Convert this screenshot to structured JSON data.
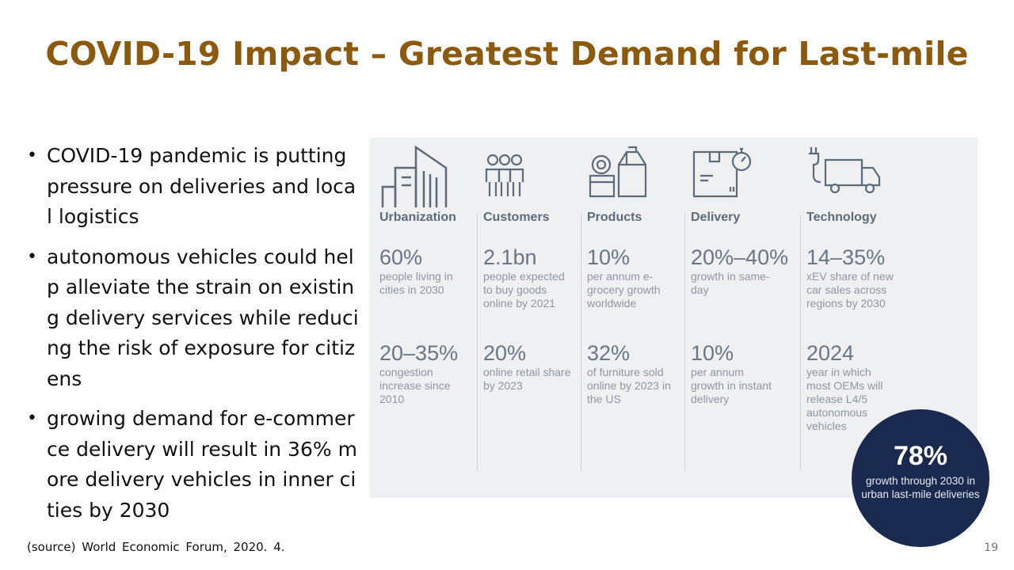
{
  "slide": {
    "title": "COVID-19 Impact – Greatest Demand for Last-mile",
    "bullets": [
      "COVID-19 pandemic is putting pressure on deliveries and local logistics",
      "autonomous vehicles could help alleviate the strain on existing delivery services while reducing the risk of exposure for citizens",
      "growing demand for e-commerce delivery will result in 36% more delivery vehicles in inner cities by 2030"
    ],
    "source": "(source) World Economic Forum, 2020. 4.",
    "page_number": "19"
  },
  "infographic": {
    "columns": [
      {
        "category": "Urbanization",
        "icon": "buildings-icon",
        "stats": [
          {
            "value": "60%",
            "desc": "people living in cities in 2030"
          },
          {
            "value": "20–35%",
            "desc": "congestion increase since 2010"
          }
        ]
      },
      {
        "category": "Customers",
        "icon": "people-icon",
        "stats": [
          {
            "value": "2.1bn",
            "desc": "people expected to buy goods online by 2021"
          },
          {
            "value": "20%",
            "desc": "online retail share by 2023"
          }
        ]
      },
      {
        "category": "Products",
        "icon": "groceries-icon",
        "stats": [
          {
            "value": "10%",
            "desc": "per annum e-grocery growth worldwide"
          },
          {
            "value": "32%",
            "desc": "of furniture sold online by 2023 in the US"
          }
        ]
      },
      {
        "category": "Delivery",
        "icon": "package-timer-icon",
        "stats": [
          {
            "value": "20%–40%",
            "desc": "growth in same-day"
          },
          {
            "value": "10%",
            "desc": "per annum growth in instant delivery"
          }
        ]
      },
      {
        "category": "Technology",
        "icon": "electric-truck-icon",
        "stats": [
          {
            "value": "14–35%",
            "desc": "xEV share of new car sales across regions by 2030"
          },
          {
            "value": "2024",
            "desc": "year in which most OEMs will release L4/5 autonomous vehicles"
          }
        ]
      }
    ],
    "highlight": {
      "value": "78%",
      "desc": "growth through 2030 in urban last-mile deliveries"
    }
  }
}
